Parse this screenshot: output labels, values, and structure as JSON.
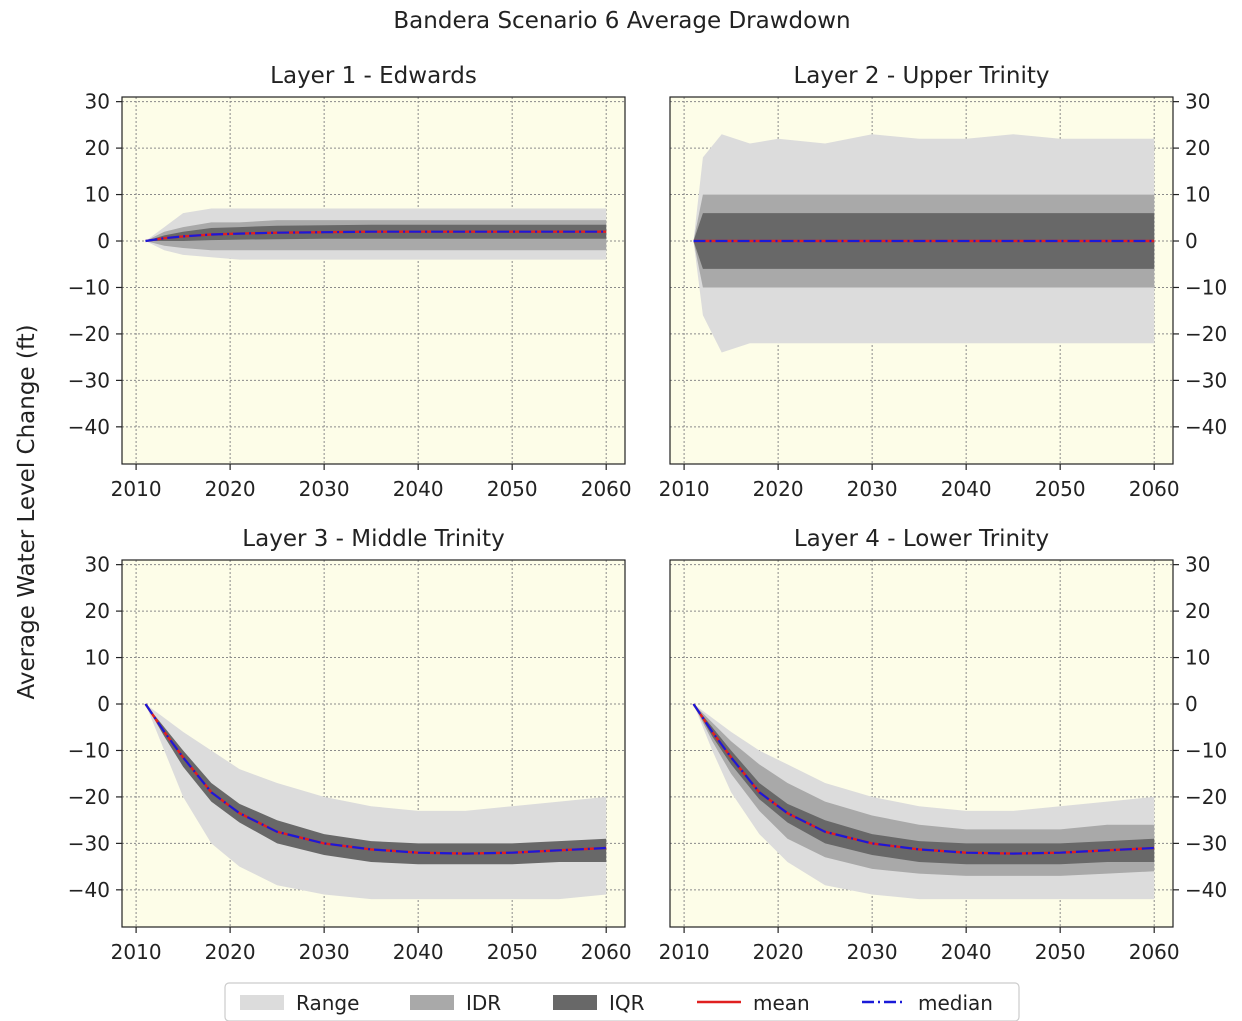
{
  "figure": {
    "suptitle": "Bandera Scenario 6 Average Drawdown",
    "ylabel": "Average Water Level Change (ft)",
    "colors": {
      "background": "#fdfde8",
      "range": "#dcdcdc",
      "idr": "#a9a9a9",
      "iqr": "#686868",
      "mean": "#e02020",
      "median": "#1a1ad8",
      "grid": "#8a8a8a"
    },
    "legend": {
      "placement": "bottom-center",
      "entries": [
        {
          "label": "Range",
          "kind": "patch",
          "color": "#dcdcdc"
        },
        {
          "label": "IDR",
          "kind": "patch",
          "color": "#a9a9a9"
        },
        {
          "label": "IQR",
          "kind": "patch",
          "color": "#686868"
        },
        {
          "label": "mean",
          "kind": "line",
          "color": "#e02020"
        },
        {
          "label": "median",
          "kind": "dashdot",
          "color": "#1a1ad8"
        }
      ]
    }
  },
  "chart_data": [
    {
      "type": "area",
      "title": "Layer 1 - Edwards",
      "xlim": [
        2008.5,
        2062
      ],
      "ylim": [
        -48,
        31
      ],
      "xticks": [
        2010,
        2020,
        2030,
        2040,
        2050,
        2060
      ],
      "yticks": [
        30,
        20,
        10,
        0,
        -10,
        -20,
        -30,
        -40
      ],
      "grid": true,
      "x": [
        2011,
        2013,
        2015,
        2018,
        2021,
        2025,
        2030,
        2035,
        2040,
        2045,
        2050,
        2055,
        2060
      ],
      "series": [
        {
          "name": "Range",
          "lower": [
            0,
            -2,
            -3,
            -3.5,
            -4,
            -4,
            -4,
            -4,
            -4,
            -4,
            -4,
            -4,
            -4
          ],
          "upper": [
            0,
            3,
            6,
            7,
            7,
            7,
            7,
            7,
            7,
            7,
            7,
            7,
            7
          ]
        },
        {
          "name": "IDR",
          "lower": [
            0,
            -1,
            -1.5,
            -2,
            -2,
            -2,
            -2,
            -2,
            -2,
            -2,
            -2,
            -2,
            -2
          ],
          "upper": [
            0,
            2,
            3,
            4,
            4,
            4.5,
            4.5,
            4.5,
            4.5,
            4.5,
            4.5,
            4.5,
            4.5
          ]
        },
        {
          "name": "IQR",
          "lower": [
            0,
            0,
            0,
            0.2,
            0.3,
            0.4,
            0.5,
            0.5,
            0.5,
            0.5,
            0.5,
            0.5,
            0.5
          ],
          "upper": [
            0,
            1.2,
            2,
            2.8,
            3,
            3.3,
            3.4,
            3.5,
            3.5,
            3.5,
            3.5,
            3.5,
            3.5
          ]
        },
        {
          "name": "mean",
          "values": [
            0,
            0.6,
            1,
            1.4,
            1.6,
            1.8,
            1.9,
            2,
            2,
            2,
            2,
            2,
            2
          ]
        },
        {
          "name": "median",
          "values": [
            0,
            0.6,
            1,
            1.4,
            1.6,
            1.8,
            1.9,
            2,
            2,
            2,
            2,
            2,
            2
          ]
        }
      ]
    },
    {
      "type": "area",
      "title": "Layer 2 - Upper Trinity",
      "xlim": [
        2008.5,
        2062
      ],
      "ylim": [
        -48,
        31
      ],
      "xticks": [
        2010,
        2020,
        2030,
        2040,
        2050,
        2060
      ],
      "yticks": [
        30,
        20,
        10,
        0,
        -10,
        -20,
        -30,
        -40
      ],
      "grid": true,
      "x": [
        2011,
        2012,
        2014,
        2017,
        2020,
        2025,
        2030,
        2035,
        2040,
        2045,
        2050,
        2055,
        2060
      ],
      "series": [
        {
          "name": "Range",
          "lower": [
            0,
            -16,
            -24,
            -22,
            -22,
            -22,
            -22,
            -22,
            -22,
            -22,
            -22,
            -22,
            -22
          ],
          "upper": [
            0,
            18,
            23,
            21,
            22,
            21,
            23,
            22,
            22,
            23,
            22,
            22,
            22
          ]
        },
        {
          "name": "IDR",
          "lower": [
            0,
            -10,
            -10,
            -10,
            -10,
            -10,
            -10,
            -10,
            -10,
            -10,
            -10,
            -10,
            -10
          ],
          "upper": [
            0,
            10,
            10,
            10,
            10,
            10,
            10,
            10,
            10,
            10,
            10,
            10,
            10
          ]
        },
        {
          "name": "IQR",
          "lower": [
            0,
            -6,
            -6,
            -6,
            -6,
            -6,
            -6,
            -6,
            -6,
            -6,
            -6,
            -6,
            -6
          ],
          "upper": [
            0,
            6,
            6,
            6,
            6,
            6,
            6,
            6,
            6,
            6,
            6,
            6,
            6
          ]
        },
        {
          "name": "mean",
          "values": [
            0,
            0,
            0,
            0,
            0,
            0,
            0,
            0,
            0,
            0,
            0,
            0,
            0
          ]
        },
        {
          "name": "median",
          "values": [
            0,
            0,
            0,
            0,
            0,
            0,
            0,
            0,
            0,
            0,
            0,
            0,
            0
          ]
        }
      ]
    },
    {
      "type": "area",
      "title": "Layer 3 - Middle Trinity",
      "xlim": [
        2008.5,
        2062
      ],
      "ylim": [
        -48,
        31
      ],
      "xticks": [
        2010,
        2020,
        2030,
        2040,
        2050,
        2060
      ],
      "yticks": [
        30,
        20,
        10,
        0,
        -10,
        -20,
        -30,
        -40
      ],
      "grid": true,
      "x": [
        2011,
        2013,
        2015,
        2018,
        2021,
        2025,
        2030,
        2035,
        2040,
        2045,
        2050,
        2055,
        2060
      ],
      "series": [
        {
          "name": "Range",
          "lower": [
            0,
            -10,
            -20,
            -30,
            -35,
            -39,
            -41,
            -42,
            -42,
            -42,
            -42,
            -42,
            -41
          ],
          "upper": [
            0,
            -3,
            -6,
            -10,
            -14,
            -17,
            -20,
            -22,
            -23,
            -23,
            -22,
            -21,
            -20
          ]
        },
        {
          "name": "IDR",
          "lower": [
            0,
            -8,
            -16,
            -24,
            -29,
            -33,
            -35,
            -36.5,
            -37,
            -37,
            -37,
            -36.5,
            -36
          ]
        },
        {
          "name": "IQR",
          "lower": [
            0,
            -7,
            -13.5,
            -21,
            -25.5,
            -30,
            -32.5,
            -34,
            -34.5,
            -34.5,
            -34.5,
            -34,
            -34
          ],
          "upper": [
            0,
            -5,
            -10,
            -17,
            -21.5,
            -25,
            -28,
            -29.5,
            -30,
            -30,
            -30,
            -29.5,
            -29
          ]
        },
        {
          "name": "mean",
          "values": [
            0,
            -6,
            -11.5,
            -19,
            -23.5,
            -27.5,
            -30,
            -31.3,
            -32,
            -32.2,
            -32,
            -31.5,
            -31
          ]
        },
        {
          "name": "median",
          "values": [
            0,
            -6,
            -11.5,
            -19,
            -23.5,
            -27.5,
            -30,
            -31.3,
            -32,
            -32.2,
            -32,
            -31.5,
            -31
          ]
        }
      ]
    },
    {
      "type": "area",
      "title": "Layer 4 - Lower Trinity",
      "xlim": [
        2008.5,
        2062
      ],
      "ylim": [
        -48,
        31
      ],
      "xticks": [
        2010,
        2020,
        2030,
        2040,
        2050,
        2060
      ],
      "yticks": [
        30,
        20,
        10,
        0,
        -10,
        -20,
        -30,
        -40
      ],
      "grid": true,
      "x": [
        2011,
        2013,
        2015,
        2018,
        2021,
        2025,
        2030,
        2035,
        2040,
        2045,
        2050,
        2055,
        2060
      ],
      "series": [
        {
          "name": "Range",
          "lower": [
            0,
            -10,
            -19,
            -28,
            -34,
            -39,
            -41,
            -42,
            -42,
            -42,
            -42,
            -42,
            -42
          ],
          "upper": [
            0,
            -3,
            -6,
            -10,
            -13,
            -17,
            -20,
            -22,
            -23,
            -23,
            -22,
            -21,
            -20
          ]
        },
        {
          "name": "IDR",
          "lower": [
            0,
            -8,
            -15,
            -23,
            -29,
            -33,
            -35.5,
            -36.5,
            -37,
            -37,
            -37,
            -36.5,
            -36
          ],
          "upper": [
            0,
            -4,
            -8,
            -13,
            -17,
            -21,
            -24,
            -26,
            -27,
            -27,
            -27,
            -26,
            -26
          ]
        },
        {
          "name": "IQR",
          "lower": [
            0,
            -7,
            -13,
            -20.5,
            -25.5,
            -30,
            -32.5,
            -34,
            -34.5,
            -34.5,
            -34.5,
            -34,
            -34
          ],
          "upper": [
            0,
            -5,
            -10,
            -17,
            -21.5,
            -25,
            -28,
            -29.5,
            -30,
            -30,
            -30,
            -29.5,
            -29
          ]
        },
        {
          "name": "mean",
          "values": [
            0,
            -6,
            -11.5,
            -19,
            -23.5,
            -27.5,
            -30,
            -31.3,
            -32,
            -32.2,
            -32,
            -31.5,
            -31
          ]
        },
        {
          "name": "median",
          "values": [
            0,
            -6,
            -11.5,
            -19,
            -23.5,
            -27.5,
            -30,
            -31.3,
            -32,
            -32.2,
            -32,
            -31.5,
            -31
          ]
        }
      ]
    }
  ]
}
